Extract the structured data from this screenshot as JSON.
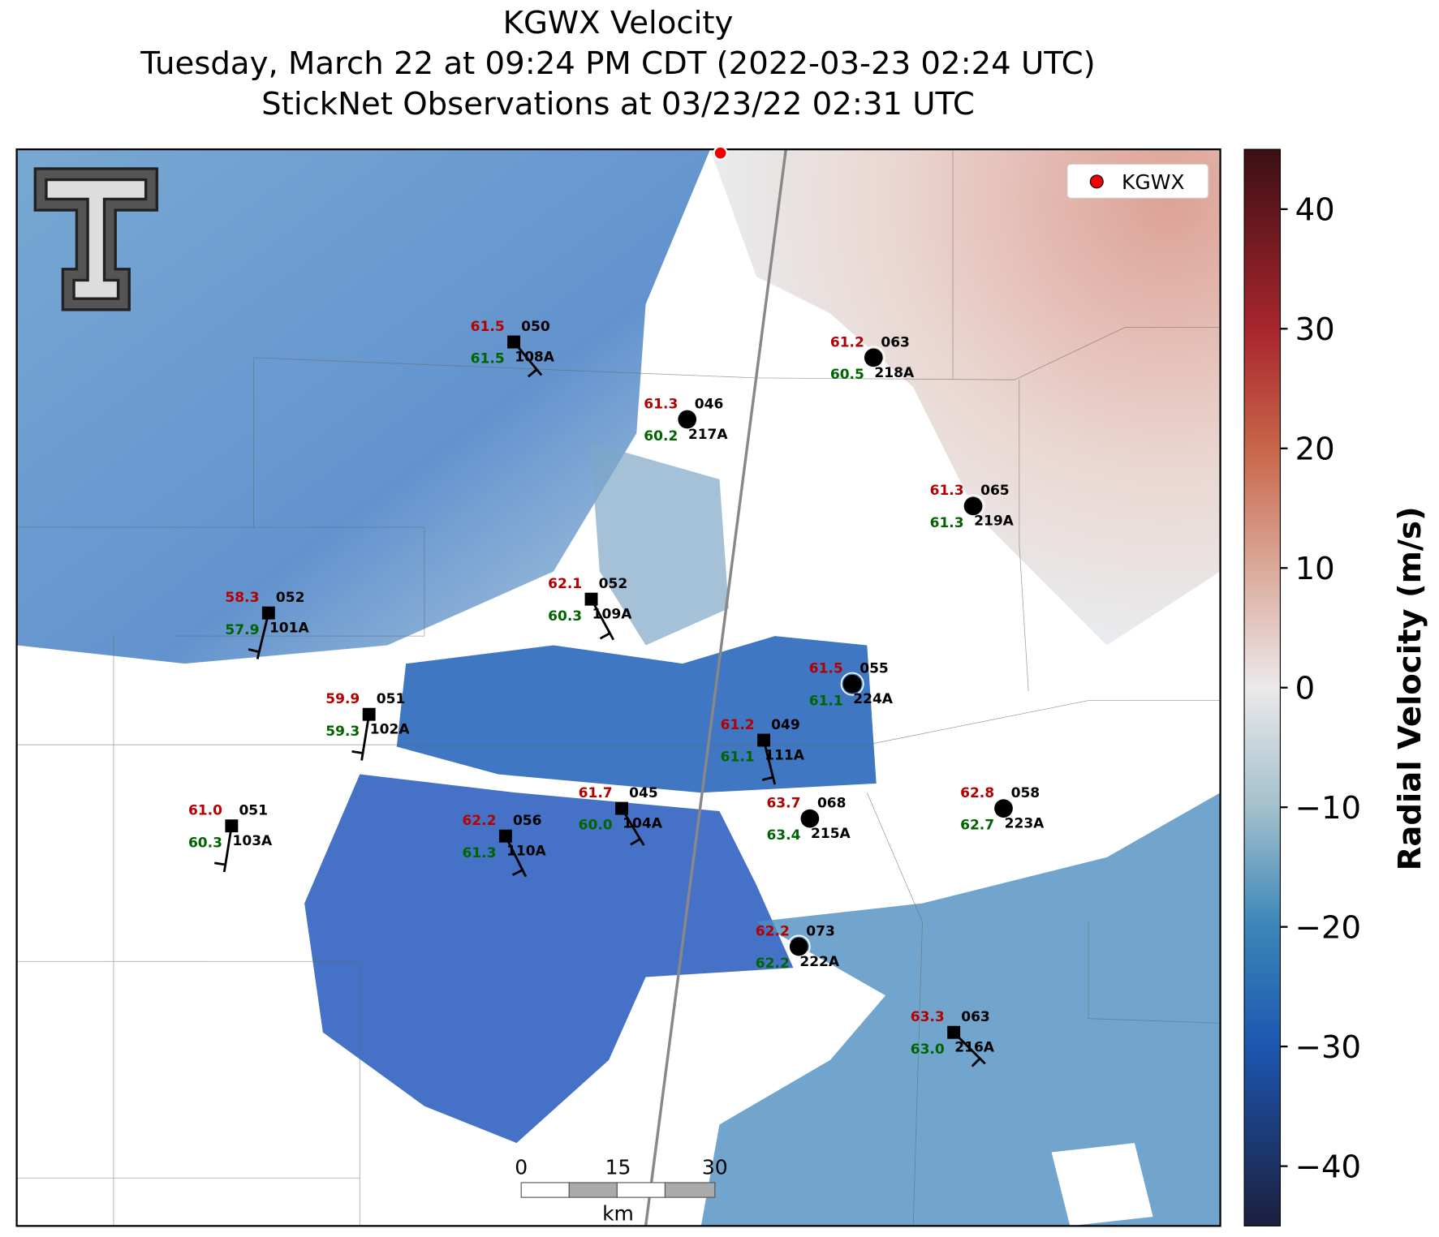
{
  "title": {
    "line1": "KGWX Velocity",
    "line2": "Tuesday, March 22 at 09:24 PM CDT (2022-03-23 02:24 UTC)",
    "line3": "StickNet Observations at 03/23/22 02:31 UTC"
  },
  "legend": {
    "label": "KGWX"
  },
  "colorbar": {
    "label": "Radial Velocity (m/s)",
    "lim": [
      -45,
      45
    ],
    "ticks": [
      40,
      30,
      20,
      10,
      0,
      {
        "value": -10,
        "label": "−10"
      },
      {
        "value": -20,
        "label": "−20"
      },
      {
        "value": -30,
        "label": "−30"
      },
      {
        "value": -40,
        "label": "−40"
      }
    ]
  },
  "scalebar": {
    "ticks": [
      0,
      15,
      30
    ],
    "unit": "km"
  },
  "stations": [
    {
      "temp": "61.5",
      "dew": "61.5",
      "code": "050",
      "id": "108A"
    },
    {
      "temp": "61.2",
      "dew": "60.5",
      "code": "063",
      "id": "218A"
    },
    {
      "temp": "61.3",
      "dew": "60.2",
      "code": "046",
      "id": "217A"
    },
    {
      "temp": "61.3",
      "dew": "61.3",
      "code": "065",
      "id": "219A"
    },
    {
      "temp": "58.3",
      "dew": "57.9",
      "code": "052",
      "id": "101A"
    },
    {
      "temp": "62.1",
      "dew": "60.3",
      "code": "052",
      "id": "109A"
    },
    {
      "temp": "61.5",
      "dew": "61.1",
      "code": "055",
      "id": "224A"
    },
    {
      "temp": "59.9",
      "dew": "59.3",
      "code": "051",
      "id": "102A"
    },
    {
      "temp": "61.2",
      "dew": "61.1",
      "code": "049",
      "id": "111A"
    },
    {
      "temp": "61.7",
      "dew": "60.0",
      "code": "045",
      "id": "104A"
    },
    {
      "temp": "63.7",
      "dew": "63.4",
      "code": "068",
      "id": "215A"
    },
    {
      "temp": "62.8",
      "dew": "62.7",
      "code": "058",
      "id": "223A"
    },
    {
      "temp": "61.0",
      "dew": "60.3",
      "code": "051",
      "id": "103A"
    },
    {
      "temp": "62.2",
      "dew": "61.3",
      "code": "056",
      "id": "110A"
    },
    {
      "temp": "62.2",
      "dew": "62.2",
      "code": "073",
      "id": "222A"
    },
    {
      "temp": "63.3",
      "dew": "63.0",
      "code": "063",
      "id": "216A"
    }
  ]
}
